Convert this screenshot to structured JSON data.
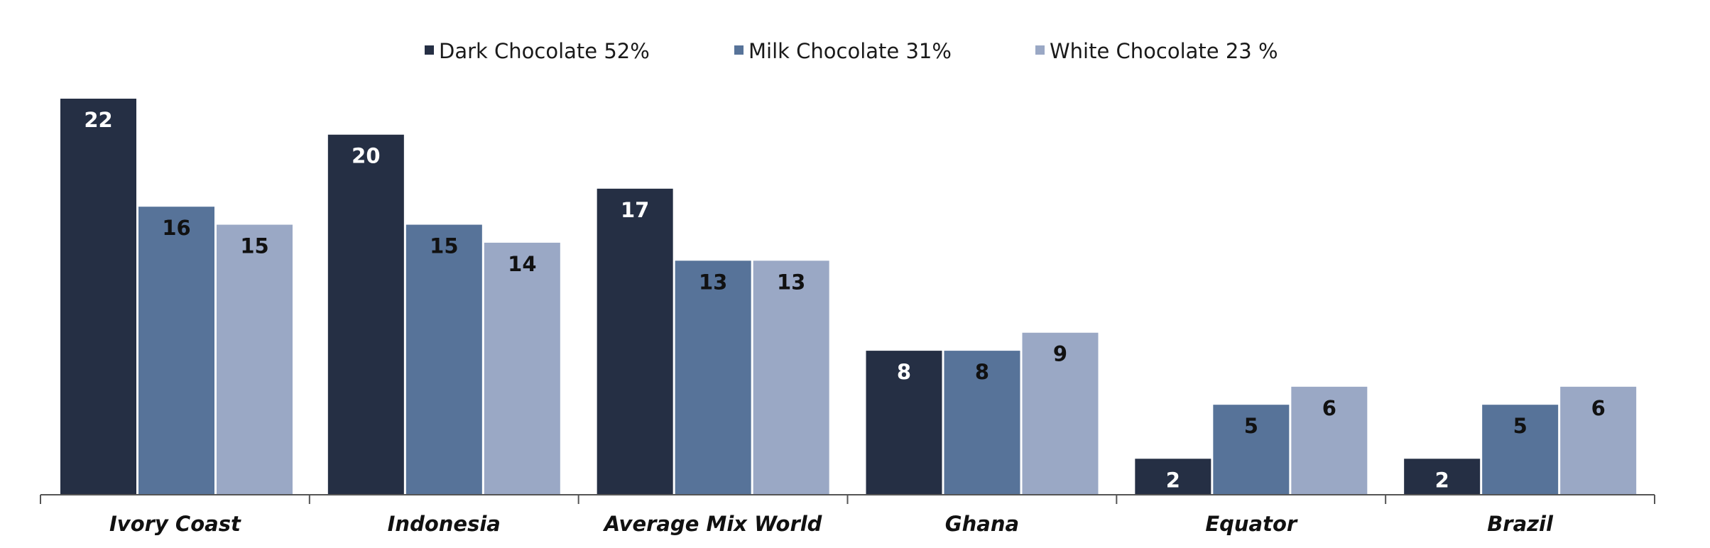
{
  "chart_data": {
    "type": "bar",
    "title": "",
    "xlabel": "",
    "ylabel": "",
    "ylim": [
      0,
      22
    ],
    "grid": false,
    "legend_position": "top-center",
    "categories": [
      "Ivory Coast",
      "Indonesia",
      "Average Mix World",
      "Ghana",
      "Equator",
      "Brazil"
    ],
    "series": [
      {
        "name": "Dark Chocolate 52%",
        "color": "#252f44",
        "label_color": "#ffffff",
        "values": [
          22,
          20,
          17,
          8,
          2,
          2
        ]
      },
      {
        "name": "Milk Chocolate 31%",
        "color": "#577399",
        "label_color": "#111111",
        "values": [
          16,
          15,
          13,
          8,
          5,
          5
        ]
      },
      {
        "name": "White Chocolate 23 %",
        "color": "#9aa8c5",
        "label_color": "#111111",
        "values": [
          15,
          14,
          13,
          9,
          6,
          6
        ]
      }
    ]
  }
}
